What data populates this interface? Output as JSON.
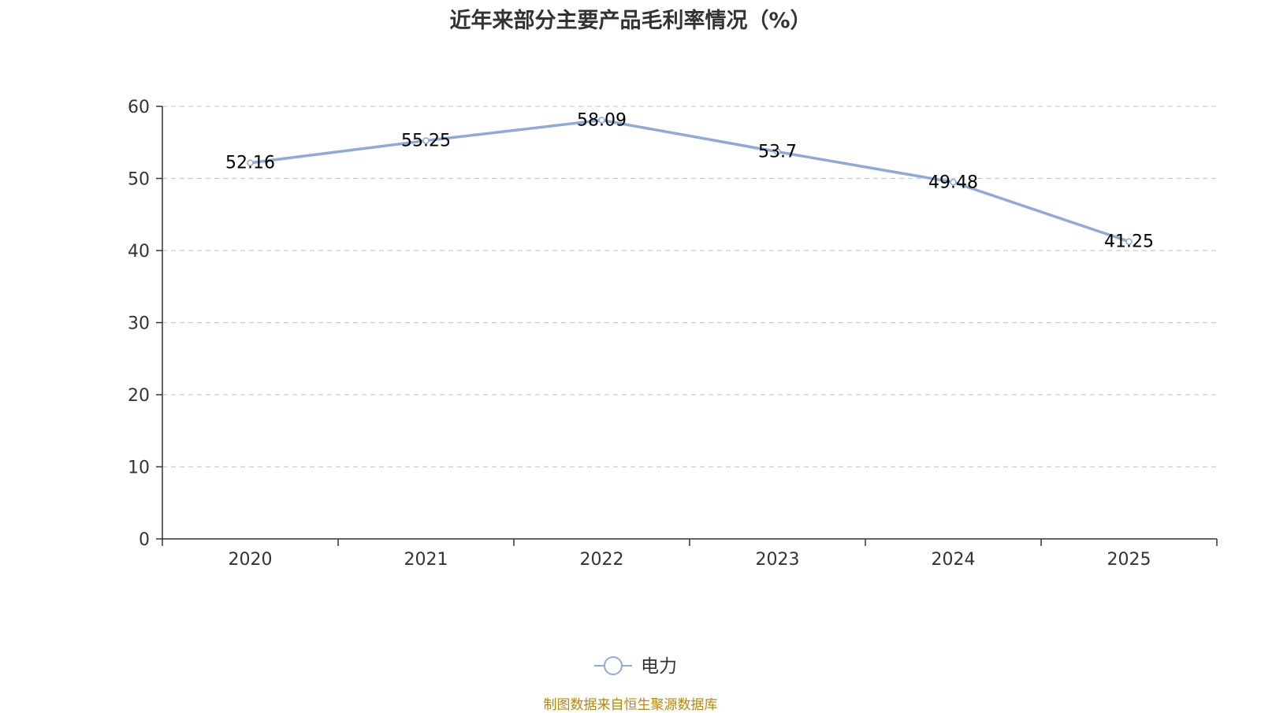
{
  "title": "近年来部分主要产品毛利率情况（%）",
  "source_note": "制图数据来自恒生聚源数据库",
  "colors": {
    "series": "#8eaad8",
    "grid": "#cccccc",
    "axis": "#333333",
    "source": "#b8860b"
  },
  "chart_data": {
    "type": "line",
    "title": "近年来部分主要产品毛利率情况（%）",
    "categories": [
      "2020",
      "2021",
      "2022",
      "2023",
      "2024",
      "2025"
    ],
    "series": [
      {
        "name": "电力",
        "values": [
          52.16,
          55.25,
          58.09,
          53.7,
          49.48,
          41.25
        ],
        "labels": [
          "52.16",
          "55.25",
          "58.09",
          "53.7",
          "49.48",
          "41.25"
        ]
      }
    ],
    "ylim": [
      0,
      60
    ],
    "yticks": [
      "0",
      "10",
      "20",
      "30",
      "40",
      "50",
      "60"
    ],
    "grid": true,
    "legend_position": "bottom-center"
  }
}
